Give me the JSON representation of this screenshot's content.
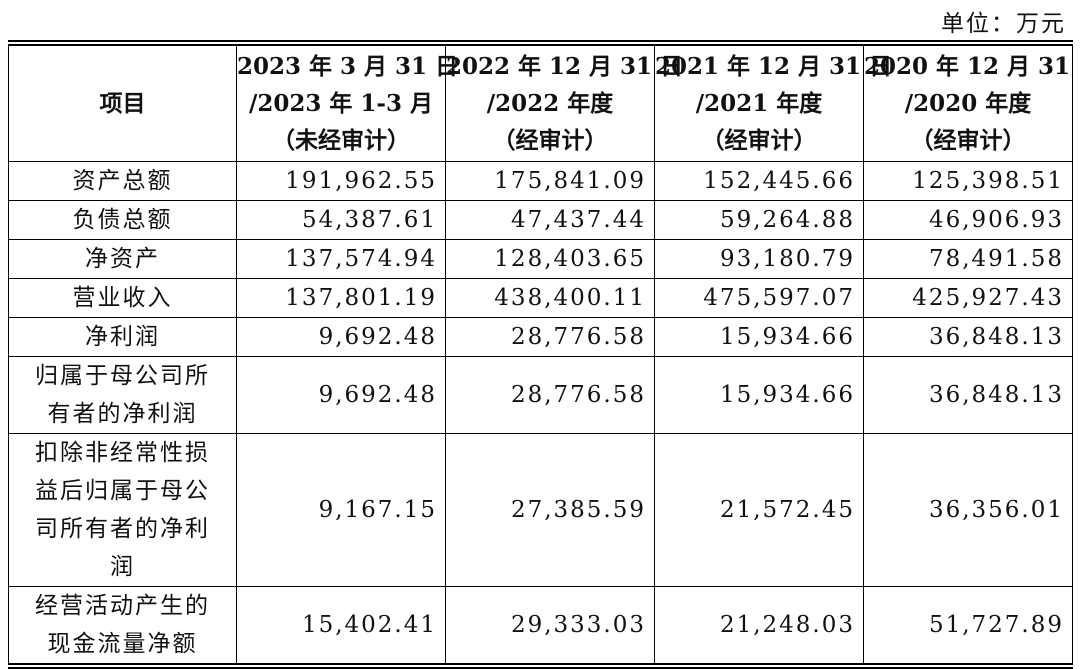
{
  "unit": "单位：万元",
  "table": {
    "header": [
      "项目",
      [
        "2023 年 3 月 31 日",
        "/2023 年 1-3 月",
        "（未经审计）"
      ],
      [
        "2022 年 12 月 31 日",
        "/2022 年度",
        "（经审计）"
      ],
      [
        "2021 年 12 月 31 日",
        "/2021 年度",
        "（经审计）"
      ],
      [
        "2020 年 12 月 31 日",
        "/2020 年度",
        "（经审计）"
      ]
    ],
    "rows": [
      [
        "资产总额",
        "191,962.55",
        "175,841.09",
        "152,445.66",
        "125,398.51"
      ],
      [
        "负债总额",
        "54,387.61",
        "47,437.44",
        "59,264.88",
        "46,906.93"
      ],
      [
        "净资产",
        "137,574.94",
        "128,403.65",
        "93,180.79",
        "78,491.58"
      ],
      [
        "营业收入",
        "137,801.19",
        "438,400.11",
        "475,597.07",
        "425,927.43"
      ],
      [
        "净利润",
        "9,692.48",
        "28,776.58",
        "15,934.66",
        "36,848.13"
      ],
      [
        "归属于母公司所有者的净利润",
        "9,692.48",
        "28,776.58",
        "15,934.66",
        "36,848.13"
      ],
      [
        "扣除非经常性损益后归属于母公司所有者的净利润",
        "9,167.15",
        "27,385.59",
        "21,572.45",
        "36,356.01"
      ],
      [
        "经营活动产生的现金流量净额",
        "15,402.41",
        "29,333.03",
        "21,248.03",
        "51,727.89"
      ]
    ]
  }
}
